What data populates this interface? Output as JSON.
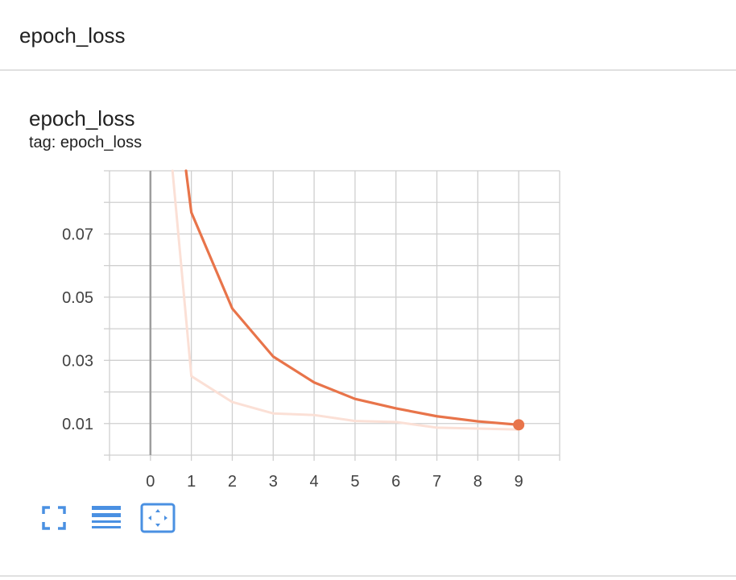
{
  "header": {
    "title": "epoch_loss"
  },
  "card": {
    "title": "epoch_loss",
    "tag": "tag: epoch_loss"
  },
  "colors": {
    "smoothed": "#e8744a",
    "raw": "#fbe0d6",
    "grid": "#cfcfcf",
    "zero_line": "#9e9e9e",
    "icon": "#4a90e2"
  },
  "toolbar": {
    "icons": [
      "fullscreen-icon",
      "lines-icon",
      "fit-domain-icon"
    ]
  },
  "chart_data": {
    "type": "line",
    "x_ticks": [
      0,
      1,
      2,
      3,
      4,
      5,
      6,
      7,
      8,
      9
    ],
    "y_ticks": [
      0.01,
      0.03,
      0.05,
      0.07
    ],
    "y_tick_labels": [
      "0.01",
      "0.03",
      "0.05",
      "0.07"
    ],
    "xlim": [
      -1,
      10
    ],
    "ylim": [
      0,
      0.09
    ],
    "grid": true,
    "series": [
      {
        "role": "raw",
        "x": [
          0.54,
          1,
          2,
          3,
          4,
          5,
          6,
          7,
          8,
          9
        ],
        "values": [
          0.09,
          0.025,
          0.0168,
          0.0132,
          0.0127,
          0.0108,
          0.0105,
          0.0087,
          0.0084,
          0.0081
        ]
      },
      {
        "role": "smoothed",
        "x": [
          0.87,
          1,
          2,
          3,
          4,
          5,
          6,
          7,
          8,
          9
        ],
        "values": [
          0.09,
          0.0768,
          0.0464,
          0.0312,
          0.023,
          0.0178,
          0.0148,
          0.0123,
          0.0107,
          0.0096
        ]
      }
    ]
  }
}
